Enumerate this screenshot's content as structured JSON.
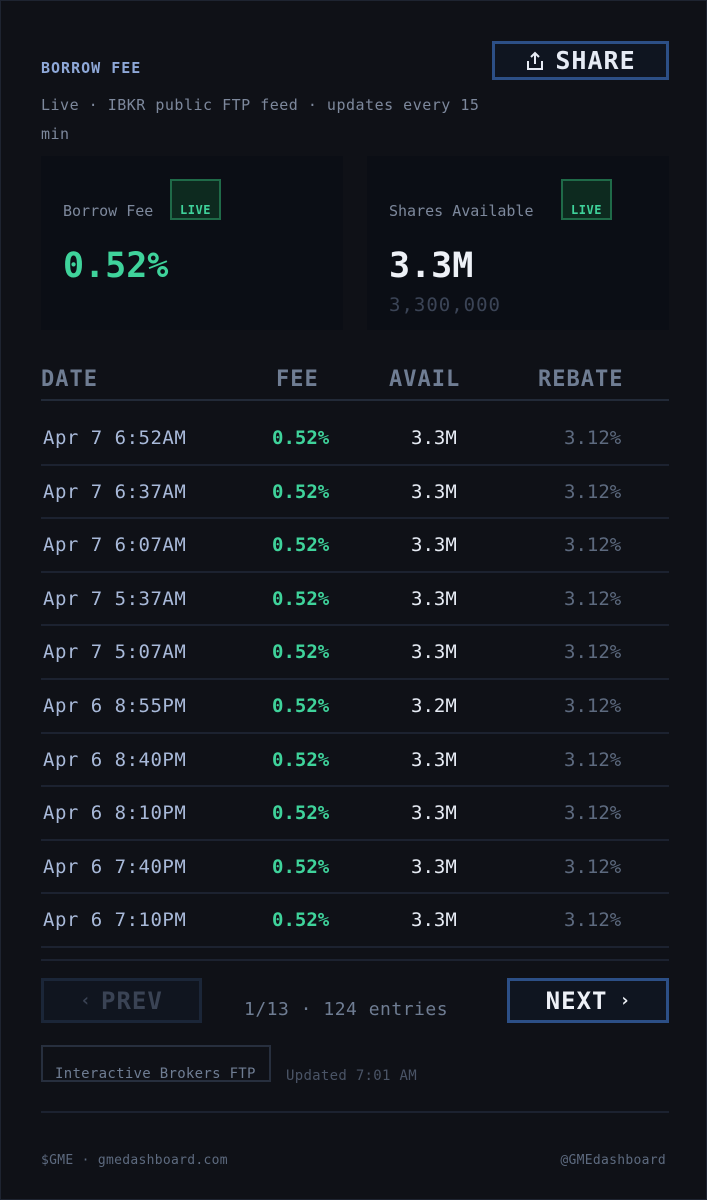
{
  "header": {
    "title": "BORROW FEE",
    "subtitle": "Live · IBKR public FTP feed · updates every 15 min",
    "share_label": "SHARE"
  },
  "cards": {
    "fee": {
      "label": "Borrow Fee",
      "badge": "LIVE",
      "value": "0.52%"
    },
    "shares": {
      "label": "Shares Available",
      "badge": "LIVE",
      "value": "3.3M",
      "exact": "3,300,000"
    }
  },
  "table": {
    "columns": [
      "DATE",
      "FEE",
      "AVAIL",
      "REBATE"
    ],
    "rows": [
      {
        "date": "Apr 7 6:52AM",
        "fee": "0.52%",
        "avail": "3.3M",
        "rebate": "3.12%"
      },
      {
        "date": "Apr 7 6:37AM",
        "fee": "0.52%",
        "avail": "3.3M",
        "rebate": "3.12%"
      },
      {
        "date": "Apr 7 6:07AM",
        "fee": "0.52%",
        "avail": "3.3M",
        "rebate": "3.12%"
      },
      {
        "date": "Apr 7 5:37AM",
        "fee": "0.52%",
        "avail": "3.3M",
        "rebate": "3.12%"
      },
      {
        "date": "Apr 7 5:07AM",
        "fee": "0.52%",
        "avail": "3.3M",
        "rebate": "3.12%"
      },
      {
        "date": "Apr 6 8:55PM",
        "fee": "0.52%",
        "avail": "3.2M",
        "rebate": "3.12%"
      },
      {
        "date": "Apr 6 8:40PM",
        "fee": "0.52%",
        "avail": "3.3M",
        "rebate": "3.12%"
      },
      {
        "date": "Apr 6 8:10PM",
        "fee": "0.52%",
        "avail": "3.3M",
        "rebate": "3.12%"
      },
      {
        "date": "Apr 6 7:40PM",
        "fee": "0.52%",
        "avail": "3.3M",
        "rebate": "3.12%"
      },
      {
        "date": "Apr 6 7:10PM",
        "fee": "0.52%",
        "avail": "3.3M",
        "rebate": "3.12%"
      }
    ]
  },
  "pager": {
    "prev_label": "PREV",
    "next_label": "NEXT",
    "info": "1/13 · 124 entries"
  },
  "source": {
    "badge": "Interactive Brokers FTP",
    "updated": "Updated 7:01 AM"
  },
  "footer": {
    "left": "$GME · gmedashboard.com",
    "right": "@GMEdashboard"
  },
  "icons": {
    "share": "share-icon",
    "prev": "chevron-left-icon",
    "next": "chevron-right-icon"
  },
  "colors": {
    "accent_green": "#3fd39b",
    "accent_blue": "#2c4f86",
    "background": "#0f1117"
  }
}
